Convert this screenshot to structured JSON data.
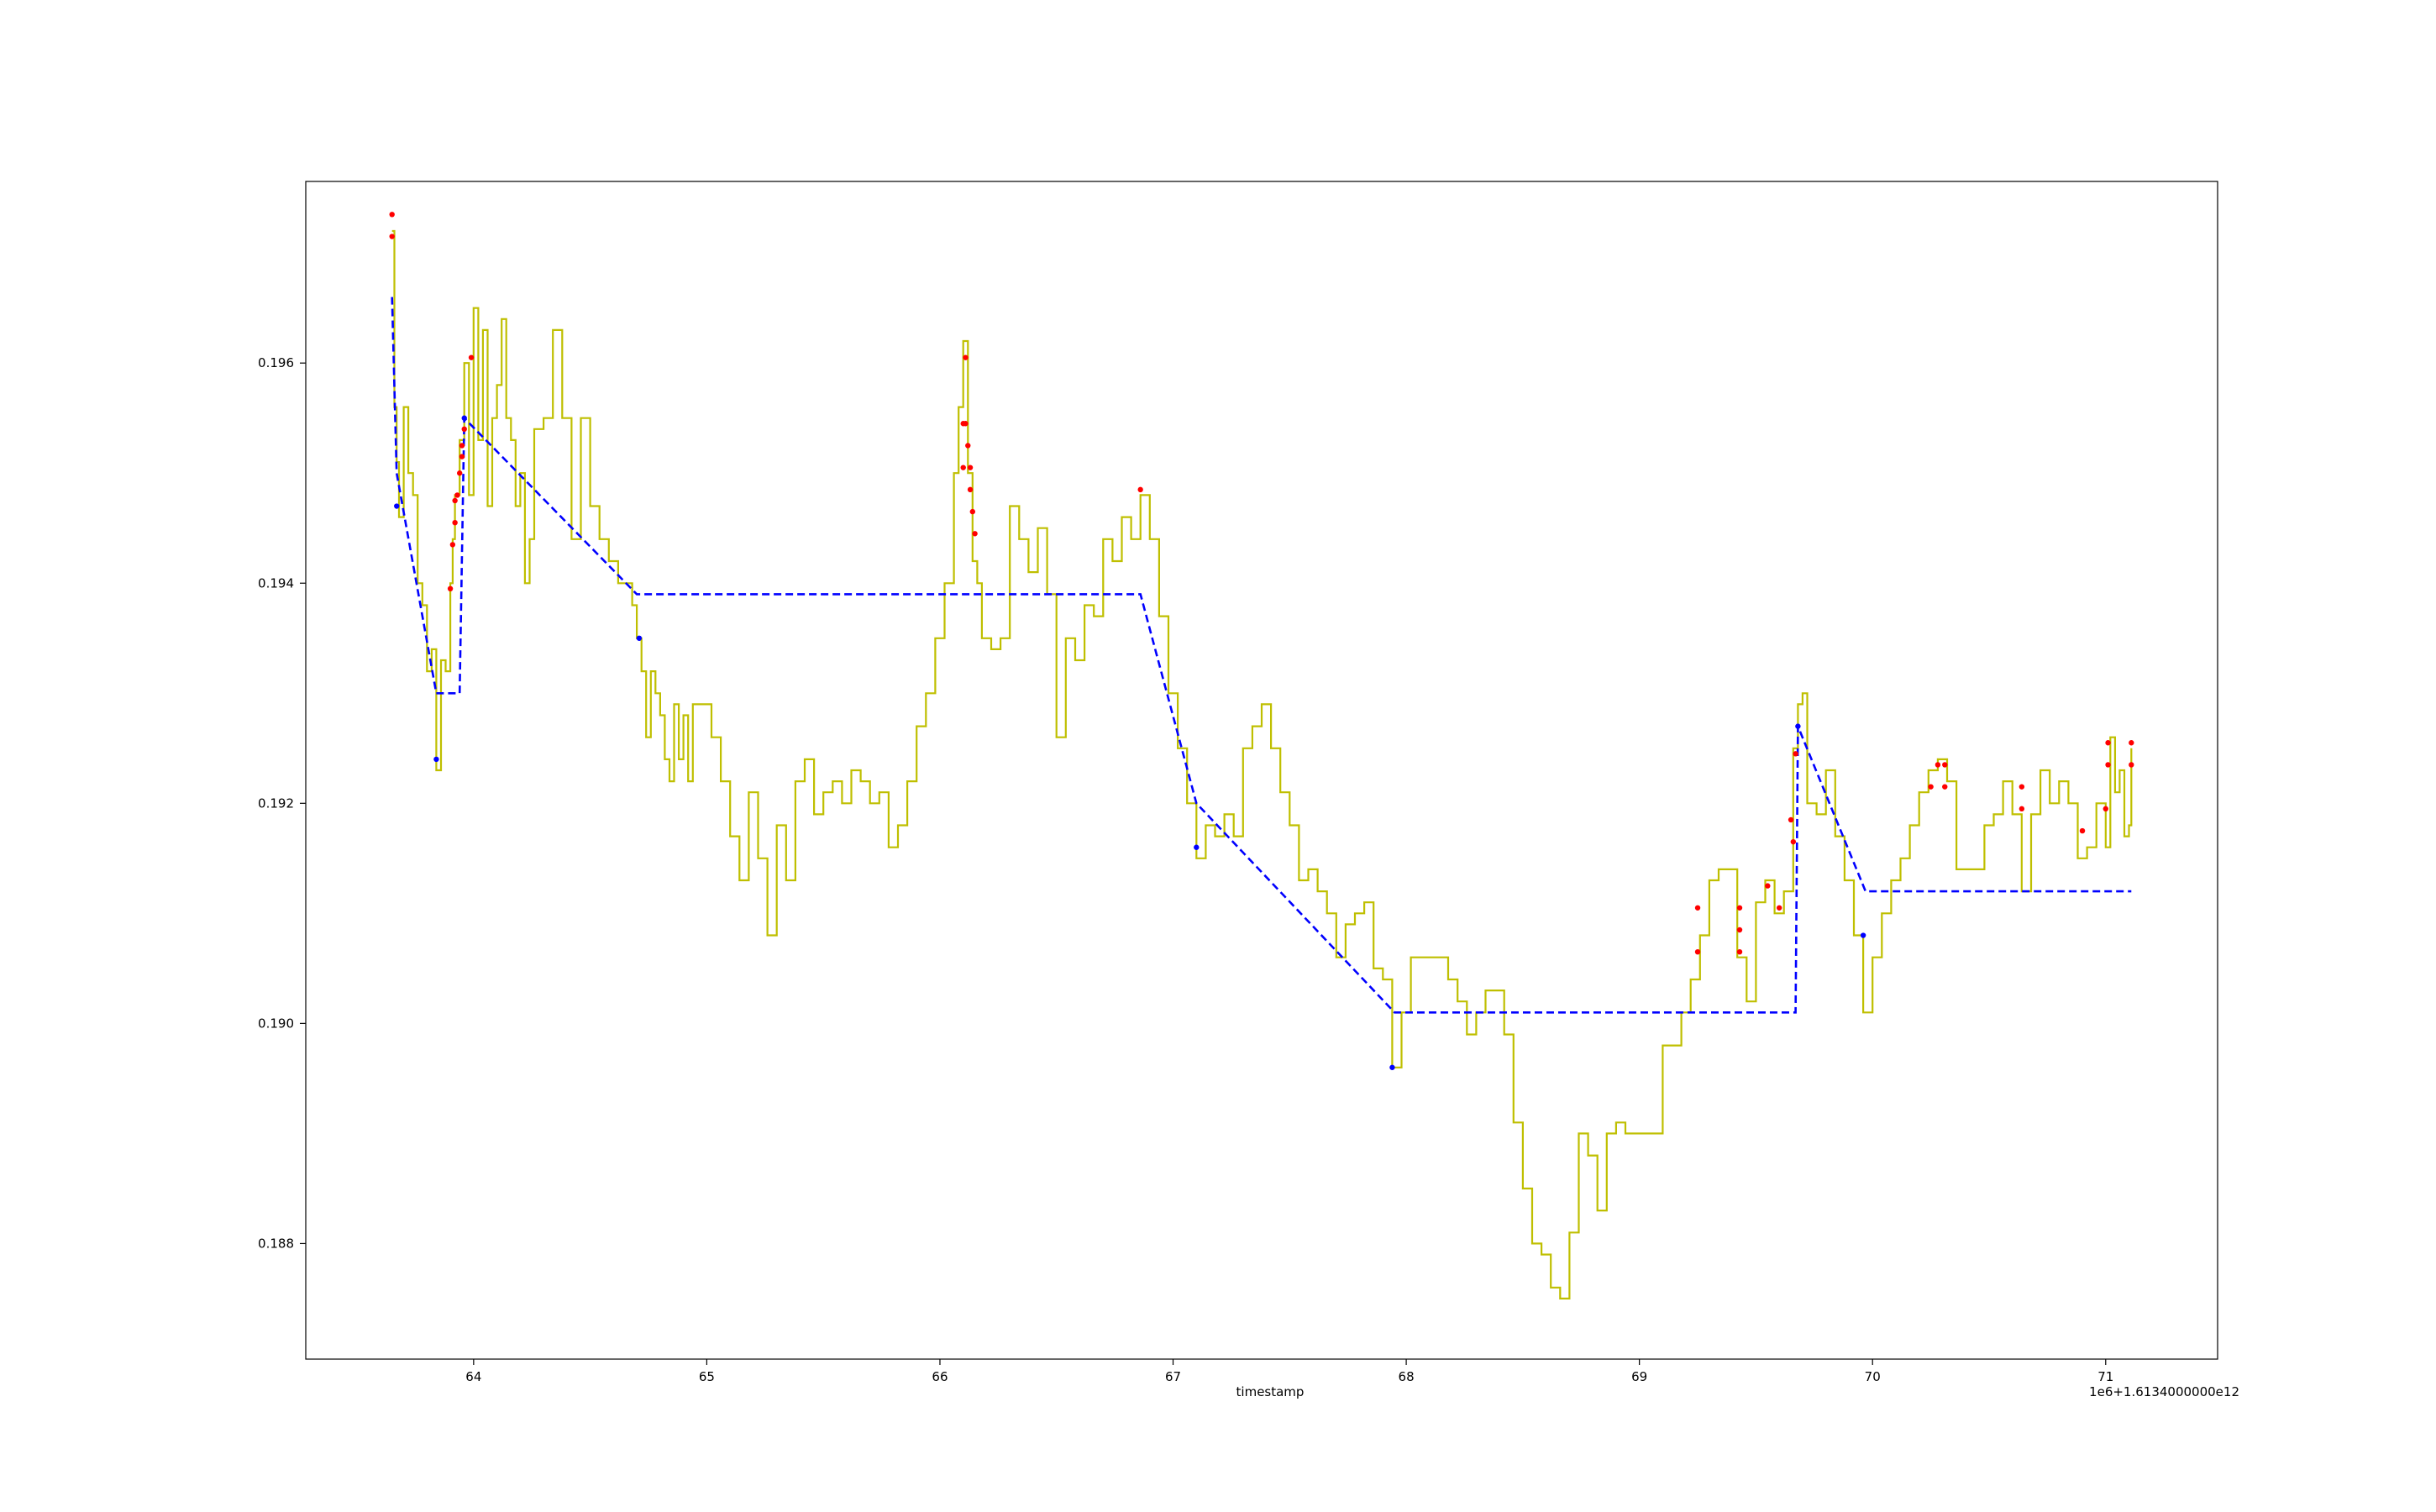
{
  "chart_data": {
    "type": "line",
    "title": "",
    "xlabel": "timestamp",
    "ylabel": "",
    "x_offset_label": "1e6+1.6134000000e12",
    "xlim": [
      63.28,
      71.48
    ],
    "ylim": [
      0.18695,
      0.19765
    ],
    "grid": false,
    "x_ticks": [
      64,
      65,
      66,
      67,
      68,
      69,
      70,
      71
    ],
    "x_tick_labels": [
      "64",
      "65",
      "66",
      "67",
      "68",
      "69",
      "70",
      "71"
    ],
    "y_ticks": [
      0.188,
      0.19,
      0.192,
      0.194,
      0.196
    ],
    "y_tick_labels": [
      "0.188",
      "0.190",
      "0.192",
      "0.194",
      "0.196"
    ],
    "colors": {
      "price": "#bfbf00",
      "trend": "#0000ff",
      "red_points": "#ff0000",
      "blue_points": "#0000ff"
    },
    "series": [
      {
        "style": "step-line",
        "color": "#bfbf00",
        "points": [
          [
            63.65,
            0.1972
          ],
          [
            63.66,
            0.1956
          ],
          [
            63.67,
            0.1951
          ],
          [
            63.68,
            0.1946
          ],
          [
            63.7,
            0.1956
          ],
          [
            63.72,
            0.195
          ],
          [
            63.74,
            0.1948
          ],
          [
            63.76,
            0.194
          ],
          [
            63.78,
            0.1938
          ],
          [
            63.8,
            0.1932
          ],
          [
            63.82,
            0.1934
          ],
          [
            63.84,
            0.1923
          ],
          [
            63.86,
            0.1933
          ],
          [
            63.88,
            0.1932
          ],
          [
            63.9,
            0.194
          ],
          [
            63.91,
            0.1944
          ],
          [
            63.92,
            0.1948
          ],
          [
            63.94,
            0.1953
          ],
          [
            63.96,
            0.196
          ],
          [
            63.98,
            0.1948
          ],
          [
            64.0,
            0.1965
          ],
          [
            64.02,
            0.1953
          ],
          [
            64.04,
            0.1963
          ],
          [
            64.06,
            0.1947
          ],
          [
            64.08,
            0.1955
          ],
          [
            64.1,
            0.1958
          ],
          [
            64.12,
            0.1964
          ],
          [
            64.14,
            0.1955
          ],
          [
            64.16,
            0.1953
          ],
          [
            64.18,
            0.1947
          ],
          [
            64.2,
            0.195
          ],
          [
            64.22,
            0.194
          ],
          [
            64.24,
            0.1944
          ],
          [
            64.26,
            0.1954
          ],
          [
            64.3,
            0.1955
          ],
          [
            64.34,
            0.1963
          ],
          [
            64.38,
            0.1955
          ],
          [
            64.42,
            0.1944
          ],
          [
            64.46,
            0.1955
          ],
          [
            64.5,
            0.1947
          ],
          [
            64.54,
            0.1944
          ],
          [
            64.58,
            0.1942
          ],
          [
            64.62,
            0.194
          ],
          [
            64.66,
            0.194
          ],
          [
            64.68,
            0.1938
          ],
          [
            64.7,
            0.1935
          ],
          [
            64.72,
            0.1932
          ],
          [
            64.74,
            0.1926
          ],
          [
            64.76,
            0.1932
          ],
          [
            64.78,
            0.193
          ],
          [
            64.8,
            0.1928
          ],
          [
            64.82,
            0.1924
          ],
          [
            64.84,
            0.1922
          ],
          [
            64.86,
            0.1929
          ],
          [
            64.88,
            0.1924
          ],
          [
            64.9,
            0.1928
          ],
          [
            64.92,
            0.1922
          ],
          [
            64.94,
            0.1929
          ],
          [
            64.98,
            0.1929
          ],
          [
            65.02,
            0.1926
          ],
          [
            65.06,
            0.1922
          ],
          [
            65.1,
            0.1917
          ],
          [
            65.14,
            0.1913
          ],
          [
            65.18,
            0.1921
          ],
          [
            65.22,
            0.1915
          ],
          [
            65.26,
            0.1908
          ],
          [
            65.3,
            0.1918
          ],
          [
            65.34,
            0.1913
          ],
          [
            65.38,
            0.1922
          ],
          [
            65.42,
            0.1924
          ],
          [
            65.46,
            0.1919
          ],
          [
            65.5,
            0.1921
          ],
          [
            65.54,
            0.1922
          ],
          [
            65.58,
            0.192
          ],
          [
            65.62,
            0.1923
          ],
          [
            65.66,
            0.1922
          ],
          [
            65.7,
            0.192
          ],
          [
            65.74,
            0.1921
          ],
          [
            65.78,
            0.1916
          ],
          [
            65.82,
            0.1918
          ],
          [
            65.86,
            0.1922
          ],
          [
            65.9,
            0.1927
          ],
          [
            65.94,
            0.193
          ],
          [
            65.98,
            0.1935
          ],
          [
            66.02,
            0.194
          ],
          [
            66.06,
            0.195
          ],
          [
            66.08,
            0.1956
          ],
          [
            66.1,
            0.1962
          ],
          [
            66.12,
            0.195
          ],
          [
            66.14,
            0.1942
          ],
          [
            66.16,
            0.194
          ],
          [
            66.18,
            0.1935
          ],
          [
            66.22,
            0.1934
          ],
          [
            66.26,
            0.1935
          ],
          [
            66.3,
            0.1947
          ],
          [
            66.34,
            0.1944
          ],
          [
            66.38,
            0.1941
          ],
          [
            66.42,
            0.1945
          ],
          [
            66.46,
            0.1939
          ],
          [
            66.5,
            0.1926
          ],
          [
            66.54,
            0.1935
          ],
          [
            66.58,
            0.1933
          ],
          [
            66.62,
            0.1938
          ],
          [
            66.66,
            0.1937
          ],
          [
            66.7,
            0.1944
          ],
          [
            66.74,
            0.1942
          ],
          [
            66.78,
            0.1946
          ],
          [
            66.82,
            0.1944
          ],
          [
            66.86,
            0.1948
          ],
          [
            66.9,
            0.1944
          ],
          [
            66.94,
            0.1937
          ],
          [
            66.98,
            0.193
          ],
          [
            67.02,
            0.1925
          ],
          [
            67.06,
            0.192
          ],
          [
            67.1,
            0.1915
          ],
          [
            67.14,
            0.1918
          ],
          [
            67.18,
            0.1917
          ],
          [
            67.22,
            0.1919
          ],
          [
            67.26,
            0.1917
          ],
          [
            67.3,
            0.1925
          ],
          [
            67.34,
            0.1927
          ],
          [
            67.38,
            0.1929
          ],
          [
            67.42,
            0.1925
          ],
          [
            67.46,
            0.1921
          ],
          [
            67.5,
            0.1918
          ],
          [
            67.54,
            0.1913
          ],
          [
            67.58,
            0.1914
          ],
          [
            67.62,
            0.1912
          ],
          [
            67.66,
            0.191
          ],
          [
            67.7,
            0.1906
          ],
          [
            67.74,
            0.1909
          ],
          [
            67.78,
            0.191
          ],
          [
            67.82,
            0.1911
          ],
          [
            67.86,
            0.1905
          ],
          [
            67.9,
            0.1904
          ],
          [
            67.94,
            0.1896
          ],
          [
            67.98,
            0.1901
          ],
          [
            68.02,
            0.1906
          ],
          [
            68.06,
            0.1906
          ],
          [
            68.1,
            0.1906
          ],
          [
            68.14,
            0.1906
          ],
          [
            68.18,
            0.1904
          ],
          [
            68.22,
            0.1902
          ],
          [
            68.26,
            0.1899
          ],
          [
            68.3,
            0.1901
          ],
          [
            68.34,
            0.1903
          ],
          [
            68.38,
            0.1903
          ],
          [
            68.42,
            0.1899
          ],
          [
            68.46,
            0.1891
          ],
          [
            68.5,
            0.1885
          ],
          [
            68.54,
            0.188
          ],
          [
            68.58,
            0.1879
          ],
          [
            68.62,
            0.1876
          ],
          [
            68.66,
            0.1875
          ],
          [
            68.7,
            0.1881
          ],
          [
            68.74,
            0.189
          ],
          [
            68.78,
            0.1888
          ],
          [
            68.82,
            0.1883
          ],
          [
            68.86,
            0.189
          ],
          [
            68.9,
            0.1891
          ],
          [
            68.94,
            0.189
          ],
          [
            68.98,
            0.189
          ],
          [
            69.02,
            0.189
          ],
          [
            69.06,
            0.189
          ],
          [
            69.1,
            0.1898
          ],
          [
            69.14,
            0.1898
          ],
          [
            69.18,
            0.1901
          ],
          [
            69.22,
            0.1904
          ],
          [
            69.26,
            0.1908
          ],
          [
            69.3,
            0.1913
          ],
          [
            69.34,
            0.1914
          ],
          [
            69.38,
            0.1914
          ],
          [
            69.42,
            0.1906
          ],
          [
            69.46,
            0.1902
          ],
          [
            69.5,
            0.1911
          ],
          [
            69.54,
            0.1913
          ],
          [
            69.58,
            0.191
          ],
          [
            69.62,
            0.1912
          ],
          [
            69.66,
            0.1925
          ],
          [
            69.68,
            0.1929
          ],
          [
            69.7,
            0.193
          ],
          [
            69.72,
            0.192
          ],
          [
            69.76,
            0.1919
          ],
          [
            69.8,
            0.1923
          ],
          [
            69.84,
            0.1917
          ],
          [
            69.88,
            0.1913
          ],
          [
            69.92,
            0.1908
          ],
          [
            69.96,
            0.1901
          ],
          [
            70.0,
            0.1906
          ],
          [
            70.04,
            0.191
          ],
          [
            70.08,
            0.1913
          ],
          [
            70.12,
            0.1915
          ],
          [
            70.16,
            0.1918
          ],
          [
            70.2,
            0.1921
          ],
          [
            70.24,
            0.1923
          ],
          [
            70.28,
            0.1924
          ],
          [
            70.32,
            0.1922
          ],
          [
            70.36,
            0.1914
          ],
          [
            70.4,
            0.1914
          ],
          [
            70.44,
            0.1914
          ],
          [
            70.48,
            0.1918
          ],
          [
            70.52,
            0.1919
          ],
          [
            70.56,
            0.1922
          ],
          [
            70.6,
            0.1919
          ],
          [
            70.64,
            0.1912
          ],
          [
            70.68,
            0.1919
          ],
          [
            70.72,
            0.1923
          ],
          [
            70.76,
            0.192
          ],
          [
            70.8,
            0.1922
          ],
          [
            70.84,
            0.192
          ],
          [
            70.88,
            0.1915
          ],
          [
            70.92,
            0.1916
          ],
          [
            70.96,
            0.192
          ],
          [
            71.0,
            0.1916
          ],
          [
            71.02,
            0.1926
          ],
          [
            71.04,
            0.1921
          ],
          [
            71.06,
            0.1923
          ],
          [
            71.08,
            0.1917
          ],
          [
            71.1,
            0.1918
          ],
          [
            71.11,
            0.1925
          ]
        ]
      },
      {
        "style": "dashed-line",
        "color": "#0000ff",
        "points": [
          [
            63.65,
            0.1966
          ],
          [
            63.67,
            0.195
          ],
          [
            63.84,
            0.193
          ],
          [
            63.94,
            0.193
          ],
          [
            63.96,
            0.1955
          ],
          [
            64.7,
            0.1939
          ],
          [
            66.86,
            0.1939
          ],
          [
            67.1,
            0.192
          ],
          [
            67.95,
            0.1901
          ],
          [
            69.67,
            0.1901
          ],
          [
            69.68,
            0.1927
          ],
          [
            69.97,
            0.1912
          ],
          [
            71.11,
            0.1912
          ]
        ]
      }
    ],
    "red_points": [
      [
        63.65,
        0.19735
      ],
      [
        63.65,
        0.19715
      ],
      [
        63.9,
        0.19395
      ],
      [
        63.91,
        0.19435
      ],
      [
        63.92,
        0.19455
      ],
      [
        63.92,
        0.19475
      ],
      [
        63.93,
        0.1948
      ],
      [
        63.94,
        0.195
      ],
      [
        63.95,
        0.19515
      ],
      [
        63.95,
        0.19525
      ],
      [
        63.96,
        0.1954
      ],
      [
        63.99,
        0.19605
      ],
      [
        66.1,
        0.19545
      ],
      [
        66.1,
        0.19505
      ],
      [
        66.11,
        0.19605
      ],
      [
        66.11,
        0.19545
      ],
      [
        66.12,
        0.19525
      ],
      [
        66.13,
        0.19505
      ],
      [
        66.13,
        0.19485
      ],
      [
        66.14,
        0.19465
      ],
      [
        66.15,
        0.19445
      ],
      [
        66.86,
        0.19485
      ],
      [
        69.25,
        0.19065
      ],
      [
        69.25,
        0.19105
      ],
      [
        69.43,
        0.19105
      ],
      [
        69.43,
        0.19085
      ],
      [
        69.43,
        0.19065
      ],
      [
        69.55,
        0.19125
      ],
      [
        69.6,
        0.19105
      ],
      [
        69.65,
        0.19185
      ],
      [
        69.66,
        0.19165
      ],
      [
        69.67,
        0.19245
      ],
      [
        70.25,
        0.19215
      ],
      [
        70.28,
        0.19235
      ],
      [
        70.31,
        0.19215
      ],
      [
        70.31,
        0.19235
      ],
      [
        70.64,
        0.19195
      ],
      [
        70.64,
        0.19215
      ],
      [
        70.9,
        0.19175
      ],
      [
        71.0,
        0.19195
      ],
      [
        71.01,
        0.19235
      ],
      [
        71.01,
        0.19255
      ],
      [
        71.11,
        0.19235
      ],
      [
        71.11,
        0.19255
      ]
    ],
    "blue_points": [
      [
        63.67,
        0.1947
      ],
      [
        63.84,
        0.1924
      ],
      [
        63.96,
        0.1955
      ],
      [
        64.71,
        0.1935
      ],
      [
        67.1,
        0.1916
      ],
      [
        67.94,
        0.1896
      ],
      [
        69.68,
        0.1927
      ],
      [
        69.96,
        0.1908
      ]
    ]
  }
}
